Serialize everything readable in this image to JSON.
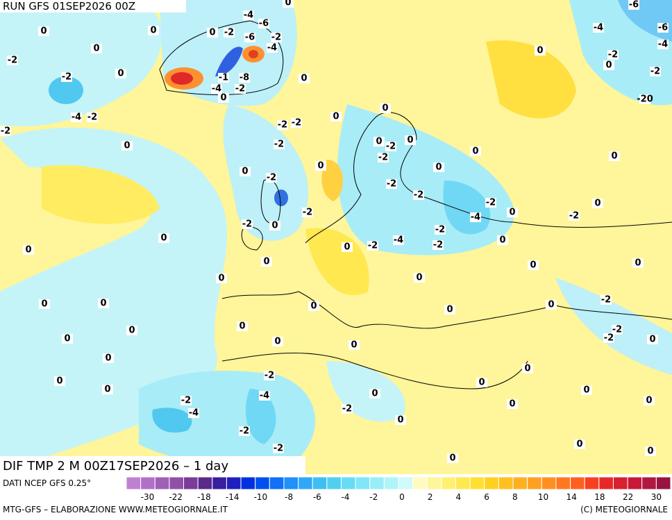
{
  "header": {
    "run": "RUN GFS 01SEP2026 00Z"
  },
  "map": {
    "title": "DIF TMP 2 M 00Z17SEP2026 – 1 day",
    "contour_labels": [
      0,
      -2,
      0,
      -2,
      0,
      -4,
      -2,
      -2,
      0,
      0,
      0,
      -2,
      -4,
      -6,
      -6,
      -2,
      -4,
      -1,
      -8,
      -4,
      -2,
      0,
      0,
      -2,
      -2,
      0,
      -2,
      0,
      -2,
      0,
      -2,
      -2,
      0,
      0,
      0,
      0,
      0,
      0,
      0,
      0,
      0,
      0,
      0,
      0,
      0,
      0,
      0,
      0,
      -2,
      -4,
      -2,
      -4,
      -2,
      -2,
      -2,
      0,
      0,
      0,
      0,
      -2,
      -2,
      0,
      0,
      0,
      -2,
      -2,
      -2,
      -4,
      0,
      -2,
      -4,
      -2,
      -2,
      0,
      0,
      0,
      0,
      0,
      0,
      0,
      0,
      -2,
      -2,
      -20,
      0,
      0,
      -2,
      0,
      -2,
      -2,
      -2,
      0,
      -4,
      -6,
      -6,
      -4,
      0,
      0,
      0,
      0,
      0,
      0,
      0,
      0,
      0
    ]
  },
  "legend": {
    "source": "DATI NCEP GFS 0.25°",
    "ticks": [
      -30,
      -22,
      -18,
      -14,
      -10,
      -8,
      -6,
      -4,
      -2,
      0,
      2,
      4,
      6,
      8,
      10,
      14,
      18,
      22,
      30
    ],
    "colors": [
      "#c080d0",
      "#b070c8",
      "#a060b8",
      "#9050a8",
      "#7a3c98",
      "#5a2a8a",
      "#3a1ea0",
      "#2020c0",
      "#0030e0",
      "#0050f0",
      "#1070f8",
      "#2090fa",
      "#30a8f8",
      "#40bef0",
      "#50d0f0",
      "#68dcf4",
      "#80e6f8",
      "#98eef8",
      "#b0f4fa",
      "#d0fafc",
      "#fffac0",
      "#fff59a",
      "#fff070",
      "#ffe850",
      "#ffe030",
      "#ffd020",
      "#ffc020",
      "#ffb020",
      "#ffa020",
      "#ff9020",
      "#ff7820",
      "#ff6020",
      "#f84020",
      "#e82828",
      "#d82030",
      "#c81838",
      "#b01840",
      "#981440"
    ]
  },
  "footer": {
    "credit": "MTG-GFS – ELABORAZIONE WWW.METEOGIORNALE.IT",
    "copyright": "(C) METEOGIORNALE"
  }
}
